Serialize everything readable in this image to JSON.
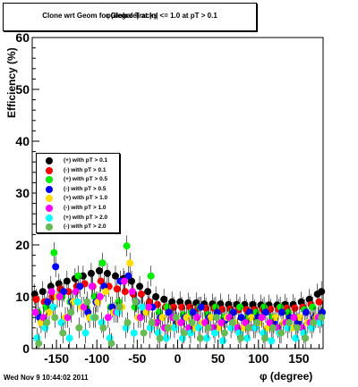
{
  "chart_data": {
    "type": "scatter",
    "title": "Clone wrt Geom for Global Tracks",
    "title_overlap": "φ(degree) at |η| <= 1.0 at pT > 0.1",
    "xlabel": "φ (degree)",
    "ylabel": "Efficiency (%)",
    "xlim": [
      -180,
      180
    ],
    "ylim": [
      0,
      60
    ],
    "xticks": [
      -150,
      -100,
      -50,
      0,
      50,
      100,
      150
    ],
    "yticks": [
      0,
      10,
      20,
      30,
      40,
      50,
      60
    ],
    "grid": false,
    "legend_placement": "left",
    "series": [
      {
        "name": "(+) with pT > 0.1",
        "color": "#000000",
        "x": [
          -177,
          -167,
          -157,
          -147,
          -137,
          -127,
          -117,
          -107,
          -97,
          -87,
          -77,
          -67,
          -57,
          -47,
          -37,
          -27,
          -17,
          -7,
          3,
          13,
          23,
          33,
          43,
          53,
          63,
          73,
          83,
          93,
          103,
          113,
          123,
          133,
          143,
          153,
          163,
          173,
          178
        ],
        "y": [
          10.5,
          11,
          12,
          12.5,
          13,
          13.5,
          14,
          14.5,
          15,
          14.5,
          14,
          13.5,
          13,
          12,
          11,
          10,
          9.5,
          9,
          9,
          8.8,
          8.8,
          8.6,
          8.6,
          8.6,
          8.5,
          8.5,
          8.5,
          8.5,
          8.4,
          8.4,
          8.4,
          8.5,
          8.5,
          9,
          9.5,
          10.5,
          11
        ]
      },
      {
        "name": "(-) with pT > 0.1",
        "color": "#ff0000",
        "x": [
          -175,
          -165,
          -155,
          -145,
          -135,
          -125,
          -115,
          -105,
          -95,
          -85,
          -75,
          -65,
          -55,
          -45,
          -35,
          -25,
          -15,
          -5,
          5,
          15,
          25,
          35,
          45,
          55,
          65,
          75,
          85,
          95,
          105,
          115,
          125,
          135,
          145,
          155,
          165,
          175
        ],
        "y": [
          9.5,
          9,
          10,
          11.5,
          11,
          12,
          12.5,
          12,
          13,
          12,
          11.5,
          11,
          10.5,
          10.5,
          9,
          8.5,
          8,
          8,
          8,
          8,
          7.8,
          7.8,
          7.8,
          7.6,
          7.6,
          7.5,
          7.5,
          7.5,
          7.6,
          7.6,
          7.6,
          7.8,
          7.8,
          8,
          8.5,
          9
        ]
      },
      {
        "name": "(+) with pT > 0.5",
        "color": "#00ee00",
        "x": [
          -173,
          -163,
          -153,
          -143,
          -133,
          -123,
          -113,
          -103,
          -93,
          -83,
          -73,
          -63,
          -53,
          -43,
          -33,
          -23,
          -13,
          -3,
          7,
          17,
          27,
          37,
          47,
          57,
          67,
          77,
          87,
          97,
          107,
          117,
          127,
          137,
          147,
          157,
          167,
          177
        ],
        "y": [
          7,
          8,
          18.5,
          10,
          9,
          14,
          8,
          10,
          16.5,
          8,
          9,
          19.8,
          8,
          8,
          14,
          7,
          8,
          6,
          6.5,
          7,
          8,
          6.5,
          8,
          6,
          7,
          8,
          6,
          7,
          8,
          6,
          8,
          7,
          6,
          7.5,
          8,
          6.5
        ]
      },
      {
        "name": "(-) with pT > 0.5",
        "color": "#0000ff",
        "x": [
          -171,
          -161,
          -151,
          -141,
          -131,
          -121,
          -111,
          -101,
          -91,
          -81,
          -71,
          -61,
          -51,
          -41,
          -31,
          -21,
          -11,
          -1,
          9,
          19,
          29,
          39,
          49,
          59,
          69,
          79,
          89,
          99,
          109,
          119,
          129,
          139,
          149,
          159,
          169,
          179
        ],
        "y": [
          6,
          9,
          15.8,
          11,
          9,
          12,
          7,
          9,
          12,
          8,
          13,
          14,
          9,
          7,
          8,
          6,
          7,
          5,
          6,
          7,
          8,
          6,
          7,
          5.5,
          7,
          6,
          7,
          6,
          7,
          5,
          7,
          6,
          5,
          7,
          6,
          7
        ]
      },
      {
        "name": "(+) with pT > 1.0",
        "color": "#ffdd00",
        "x": [
          -169,
          -159,
          -149,
          -139,
          -129,
          -119,
          -109,
          -99,
          -89,
          -79,
          -69,
          -59,
          -49,
          -39,
          -29,
          -19,
          -9,
          1,
          11,
          21,
          31,
          41,
          51,
          61,
          71,
          81,
          91,
          101,
          111,
          121,
          131,
          141,
          151,
          161,
          171
        ],
        "y": [
          5,
          7,
          10,
          6,
          9,
          8,
          6,
          9,
          11,
          7,
          8,
          16.5,
          6,
          7,
          5,
          6,
          4,
          5,
          6,
          4,
          5,
          6,
          4,
          6,
          5,
          4,
          6,
          5,
          4,
          6,
          5,
          4,
          6,
          5,
          6
        ]
      },
      {
        "name": "(-) with pT > 1.0",
        "color": "#ff00ff",
        "x": [
          -176,
          -166,
          -156,
          -146,
          -136,
          -126,
          -116,
          -106,
          -96,
          -86,
          -76,
          -66,
          -56,
          -46,
          -36,
          -26,
          -16,
          -6,
          4,
          14,
          24,
          34,
          44,
          54,
          64,
          74,
          84,
          94,
          104,
          114,
          124,
          134,
          144,
          154,
          164,
          174
        ],
        "y": [
          7,
          6,
          11,
          10,
          6,
          11,
          8,
          12,
          10,
          6,
          7,
          13,
          11,
          6,
          8,
          5,
          4,
          6,
          5,
          4,
          6,
          5,
          4,
          5,
          6,
          4,
          5,
          4,
          6,
          5,
          4,
          5,
          6,
          4,
          5,
          6
        ]
      },
      {
        "name": "(+) with pT > 2.0",
        "color": "#00ffff",
        "x": [
          -174,
          -164,
          -154,
          -144,
          -134,
          -124,
          -114,
          -104,
          -94,
          -84,
          -74,
          -64,
          -54,
          -44,
          -34,
          -24,
          -14,
          -4,
          6,
          16,
          26,
          36,
          46,
          56,
          66,
          76,
          86,
          96,
          106,
          116,
          126,
          136,
          146,
          156,
          166,
          176
        ],
        "y": [
          2,
          4,
          8,
          5,
          2,
          9,
          3,
          6,
          5,
          2,
          7,
          4,
          3,
          8,
          4,
          3,
          2,
          4,
          2,
          3,
          4,
          2,
          3,
          1.5,
          4,
          3,
          2,
          4,
          3,
          1.5,
          3,
          4,
          2,
          3,
          4,
          5
        ]
      },
      {
        "name": "(-) with pT > 2.0",
        "color": "#66bb55",
        "x": [
          -172,
          -162,
          -152,
          -142,
          -132,
          -122,
          -112,
          -102,
          -92,
          -82,
          -72,
          -62,
          -52,
          -42,
          -32,
          -22,
          -12,
          -2,
          8,
          18,
          28,
          38,
          48,
          58,
          68,
          78,
          88,
          98,
          108,
          118,
          128,
          138,
          148,
          158,
          168,
          178
        ],
        "y": [
          1,
          5,
          6,
          3,
          7,
          4,
          9,
          6,
          4,
          1,
          8,
          5,
          9,
          3,
          5,
          2,
          4,
          6,
          3,
          5,
          2,
          4,
          6,
          3,
          5,
          2,
          4,
          5,
          2,
          4,
          3,
          5,
          4,
          2,
          5,
          6
        ]
      }
    ]
  },
  "footer": {
    "timestamp": "Wed Nov  9 10:44:02 2011"
  }
}
